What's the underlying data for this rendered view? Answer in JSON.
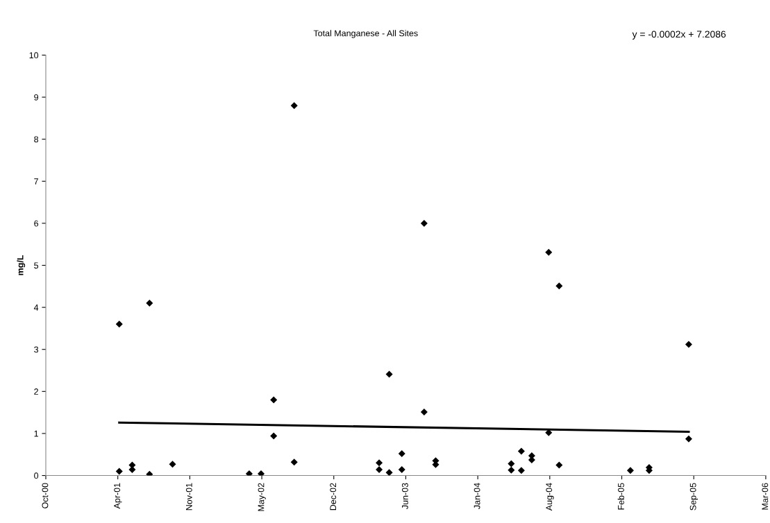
{
  "chart_data": {
    "type": "scatter",
    "title": "Total Manganese - All Sites",
    "ylabel": "mg/L",
    "annotations": [
      "y = -0.0002x + 7.2086"
    ],
    "xlim": [
      "2000-10-01",
      "2006-03-24"
    ],
    "xticks": [
      {
        "value": "2000-10-01",
        "label": "Oct-00"
      },
      {
        "value": "2001-04-19",
        "label": "Apr-01"
      },
      {
        "value": "2001-11-05",
        "label": "Nov-01"
      },
      {
        "value": "2002-05-24",
        "label": "May-02"
      },
      {
        "value": "2002-12-10",
        "label": "Dec-02"
      },
      {
        "value": "2003-06-28",
        "label": "Jun-03"
      },
      {
        "value": "2004-01-14",
        "label": "Jan-04"
      },
      {
        "value": "2004-08-01",
        "label": "Aug-04"
      },
      {
        "value": "2005-02-17",
        "label": "Feb-05"
      },
      {
        "value": "2005-09-05",
        "label": "Sep-05"
      },
      {
        "value": "2006-03-24",
        "label": "Mar-06"
      }
    ],
    "ylim": [
      0,
      10
    ],
    "yticks": [
      0,
      1,
      2,
      3,
      4,
      5,
      6,
      7,
      8,
      9,
      10
    ],
    "grid": false,
    "legend": false,
    "marker": "diamond",
    "series": [
      {
        "color": "#000000",
        "x": [
          "2001-04-23",
          "2001-04-23",
          "2001-05-29",
          "2001-05-29",
          "2001-07-16",
          "2001-07-16",
          "2001-09-18",
          "2002-04-19",
          "2002-05-22",
          "2002-06-26",
          "2002-06-26",
          "2002-08-22",
          "2002-08-22",
          "2003-04-15",
          "2003-04-15",
          "2003-05-13",
          "2003-05-13",
          "2003-06-17",
          "2003-06-17",
          "2003-08-18",
          "2003-08-18",
          "2003-09-19",
          "2003-09-19",
          "2004-04-16",
          "2004-04-16",
          "2004-05-14",
          "2004-05-14",
          "2004-06-12",
          "2004-06-12",
          "2004-07-29",
          "2004-07-29",
          "2004-08-27",
          "2004-08-27",
          "2005-03-13",
          "2005-05-04",
          "2005-05-04",
          "2005-08-22",
          "2005-08-22"
        ],
        "values": [
          3.6,
          0.1,
          0.25,
          0.14,
          4.1,
          0.03,
          0.27,
          0.04,
          0.04,
          1.8,
          0.94,
          8.8,
          0.32,
          0.3,
          0.14,
          2.41,
          0.07,
          0.52,
          0.14,
          6.0,
          1.51,
          0.35,
          0.26,
          0.28,
          0.13,
          0.58,
          0.12,
          0.47,
          0.37,
          5.31,
          1.02,
          4.51,
          0.25,
          0.12,
          0.19,
          0.12,
          3.12,
          0.87
        ]
      },
      {
        "type": "line",
        "color": "#000000",
        "marker": "none",
        "x": [
          "2001-04-23",
          "2005-08-22"
        ],
        "values": [
          1.26,
          1.04
        ]
      }
    ]
  }
}
